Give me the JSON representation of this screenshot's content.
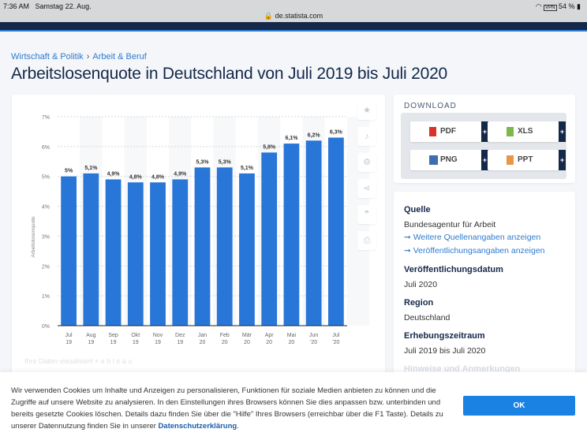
{
  "status": {
    "time": "7:36 AM",
    "date": "Samstag 22. Aug.",
    "url": "de.statista.com",
    "battery": "54 %",
    "vpn": "VPN"
  },
  "breadcrumb": [
    "Wirtschaft & Politik",
    "Arbeit & Beruf"
  ],
  "title": "Arbeitslosenquote in Deutschland von Juli 2019 bis Juli 2020",
  "tools": [
    "star-icon",
    "bell-icon",
    "gear-icon",
    "share-icon",
    "quote-icon",
    "print-icon"
  ],
  "download": {
    "title": "DOWNLOAD",
    "buttons": [
      {
        "label": "PDF",
        "color": "#d9322b"
      },
      {
        "label": "XLS",
        "color": "#7cb84a"
      },
      {
        "label": "PNG",
        "color": "#3c6fb0"
      },
      {
        "label": "PPT",
        "color": "#e8974a"
      }
    ],
    "plus": "+"
  },
  "info": {
    "source_h": "Quelle",
    "source": "Bundesagentur für Arbeit",
    "link1": "➞ Weitere Quellenangaben anzeigen",
    "link2": "➞ Veröffentlichungsangaben anzeigen",
    "pub_h": "Veröffentlichungsdatum",
    "pub": "Juli 2020",
    "region_h": "Region",
    "region": "Deutschland",
    "period_h": "Erhebungszeitraum",
    "period": "Juli 2019 bis Juli 2020",
    "notes_h": "Hinweise und Anmerkungen"
  },
  "faded": {
    "tableau": "Ihre Daten visualisiert  + a b l e a u"
  },
  "cookie": {
    "text": "Wir verwenden Cookies um Inhalte und Anzeigen zu personalisieren, Funktionen für soziale Medien anbieten zu können und die Zugriffe auf unsere Website zu analysieren. In den Einstellungen ihres Browsers können Sie dies anpassen bzw. unterbinden und bereits gesetzte Cookies löschen. Details dazu finden Sie über die \"Hilfe\" Ihres Browsers (erreichbar über die F1 Taste). Details zu unserer Datennutzung finden Sie in unserer ",
    "link": "Datenschutzerklärung",
    "end": ".",
    "ok": "OK"
  },
  "chart_data": {
    "type": "bar",
    "title": "",
    "xlabel": "",
    "ylabel": "Arbeitslosenquote",
    "ylim": [
      0,
      7
    ],
    "grid": true,
    "color": "#2876d8",
    "categories": [
      "Jul 19",
      "Aug 19",
      "Sep 19",
      "Okt 19",
      "Nov 19",
      "Dez 19",
      "Jan 20",
      "Feb 20",
      "Mär 20",
      "Apr 20",
      "Mai 20",
      "Jun '20",
      "Jul '20"
    ],
    "values": [
      5,
      5.1,
      4.9,
      4.8,
      4.8,
      4.9,
      5.3,
      5.3,
      5.1,
      5.8,
      6.1,
      6.2,
      6.3
    ],
    "labels": [
      "5%",
      "5,1%",
      "4,9%",
      "4,8%",
      "4,8%",
      "4,9%",
      "5,3%",
      "5,3%",
      "5,1%",
      "5,8%",
      "6,1%",
      "6,2%",
      "6,3%"
    ],
    "yticks": [
      "0%",
      "1%",
      "2%",
      "3%",
      "4%",
      "5%",
      "6%",
      "7%"
    ]
  }
}
